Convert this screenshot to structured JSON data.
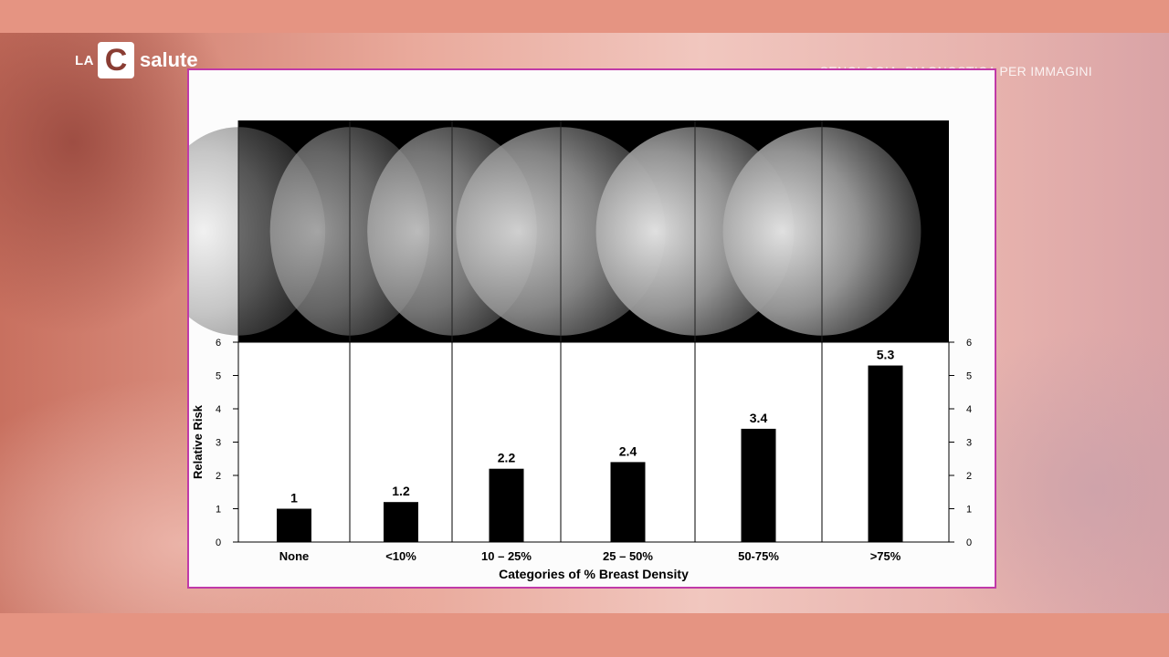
{
  "header": {
    "logo_prefix": "LA",
    "logo_letter": "C",
    "logo_name": "salute",
    "topic": "SENOLOGIA, DIAGNOSTICA PER IMMAGINI"
  },
  "colors": {
    "slide_border": "#c03aa8",
    "bar_fill": "#000000",
    "image_panel": "#000000"
  },
  "chart_data": {
    "type": "bar",
    "categories": [
      "None",
      "<10%",
      "10 – 25%",
      "25 – 50%",
      "50-75%",
      ">75%"
    ],
    "values": [
      1,
      1.2,
      2.2,
      2.4,
      3.4,
      5.3
    ],
    "value_labels": [
      "1",
      "1.2",
      "2.2",
      "2.4",
      "3.4",
      "5.3"
    ],
    "ylabel": "Relative Risk",
    "xlabel": "Categories of % Breast Density",
    "ylim": [
      0,
      6
    ],
    "yticks": [
      0,
      1,
      2,
      3,
      4,
      5,
      6
    ],
    "right_axis": true,
    "grid": false,
    "image_strip": "mammograms above each category, increasing density"
  }
}
